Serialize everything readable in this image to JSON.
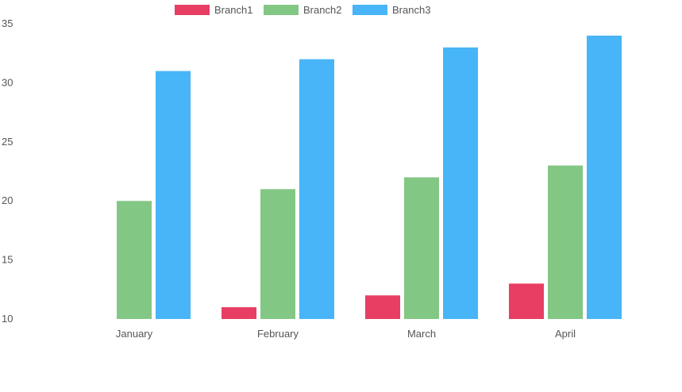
{
  "chart_data": {
    "type": "bar",
    "categories": [
      "January",
      "February",
      "March",
      "April"
    ],
    "series": [
      {
        "name": "Branch1",
        "color": "#e83e63",
        "values": [
          10,
          11,
          12,
          13
        ]
      },
      {
        "name": "Branch2",
        "color": "#83c785",
        "values": [
          20,
          21,
          22,
          23
        ]
      },
      {
        "name": "Branch3",
        "color": "#47b5f7",
        "values": [
          31,
          32,
          33,
          34
        ]
      }
    ],
    "ylim": [
      10,
      35
    ],
    "yticks": [
      "10",
      "15",
      "20",
      "25",
      "30",
      "35"
    ],
    "grid": false,
    "legend_position": "top"
  }
}
